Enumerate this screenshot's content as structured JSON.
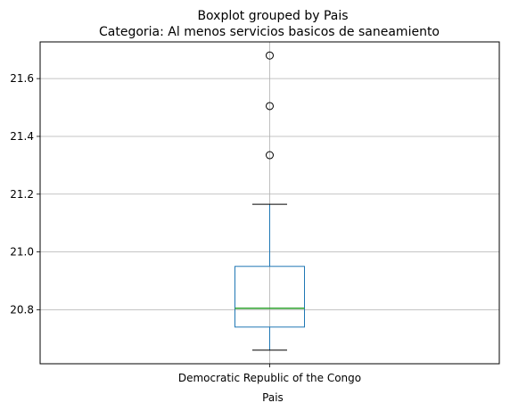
{
  "chart_data": {
    "type": "boxplot",
    "suptitle": "Boxplot grouped by Pais",
    "title": "Categoria: Al menos servicios basicos de saneamiento",
    "xlabel": "Pais",
    "ylabel": "",
    "categories": [
      "Democratic Republic of the Congo"
    ],
    "boxes": [
      {
        "category": "Democratic Republic of the Congo",
        "whisker_low": 20.66,
        "q1": 20.74,
        "median": 20.805,
        "q3": 20.95,
        "whisker_high": 21.165,
        "outliers": [
          21.335,
          21.505,
          21.68
        ]
      }
    ],
    "ylim": [
      20.613,
      21.727
    ],
    "yticks": [
      20.8,
      21.0,
      21.2,
      21.4,
      21.6
    ],
    "ytick_labels": [
      "20.8",
      "21.0",
      "21.2",
      "21.4",
      "21.6"
    ],
    "grid": true,
    "colors": {
      "box": "#1f77b4",
      "whisker": "#1f77b4",
      "cap": "#000000",
      "median": "#2ca02c",
      "flier": "#000000",
      "grid": "#b0b0b0"
    }
  }
}
